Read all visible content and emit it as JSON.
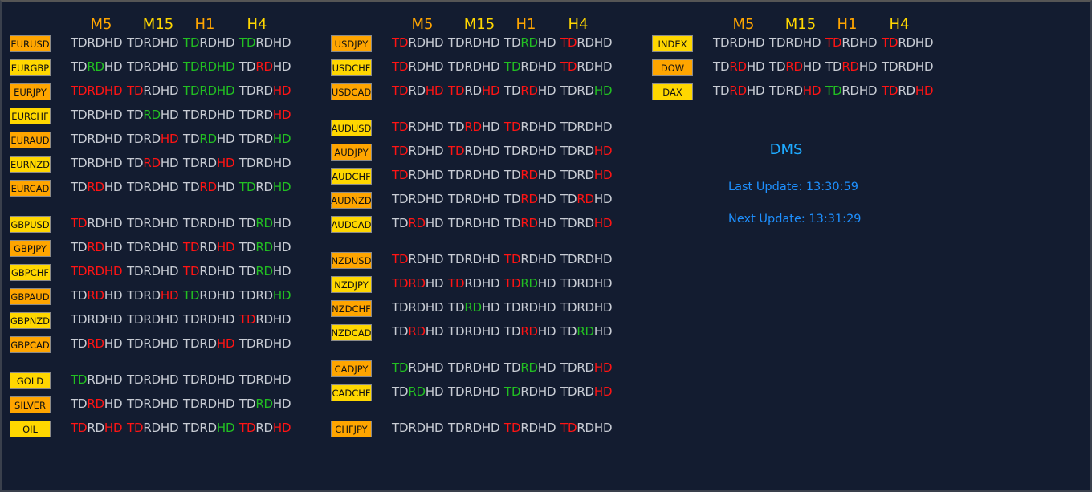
{
  "timeframes": [
    "M5",
    "M15",
    "H1",
    "H4"
  ],
  "segments": [
    "TD",
    "RD",
    "HD"
  ],
  "colors": {
    "background": "#131c30",
    "neutral": "#c8ccd4",
    "bearish": "#ff1414",
    "bullish": "#22c022",
    "header_orange": "#ffa500",
    "header_yellow": "#ffd700",
    "button_orange": "#ffa500",
    "button_gold": "#ffd700",
    "info_blue": "#1e90ff"
  },
  "legend_codes": {
    "w": "neutral",
    "r": "bearish",
    "g": "bullish"
  },
  "panels": [
    {
      "groups": [
        [
          {
            "symbol": "EURUSD",
            "button": "orange",
            "cells": [
              "www",
              "www",
              "gww",
              "gww"
            ]
          },
          {
            "symbol": "EURGBP",
            "button": "gold",
            "cells": [
              "wgw",
              "www",
              "ggg",
              "wrw"
            ]
          },
          {
            "symbol": "EURJPY",
            "button": "orange",
            "cells": [
              "rrr",
              "rww",
              "ggg",
              "wwr"
            ]
          },
          {
            "symbol": "EURCHF",
            "button": "gold",
            "cells": [
              "www",
              "wgw",
              "www",
              "wwr"
            ]
          },
          {
            "symbol": "EURAUD",
            "button": "orange",
            "cells": [
              "www",
              "wwr",
              "wgw",
              "wwg"
            ]
          },
          {
            "symbol": "EURNZD",
            "button": "gold",
            "cells": [
              "www",
              "wrw",
              "wwr",
              "www"
            ]
          },
          {
            "symbol": "EURCAD",
            "button": "orange",
            "cells": [
              "wrw",
              "www",
              "wrw",
              "gwg"
            ]
          }
        ],
        [
          {
            "symbol": "GBPUSD",
            "button": "gold",
            "cells": [
              "rww",
              "www",
              "www",
              "wgw"
            ]
          },
          {
            "symbol": "GBPJPY",
            "button": "orange",
            "cells": [
              "wrw",
              "www",
              "rwr",
              "wgw"
            ]
          },
          {
            "symbol": "GBPCHF",
            "button": "gold",
            "cells": [
              "rrr",
              "www",
              "rww",
              "wgw"
            ]
          },
          {
            "symbol": "GBPAUD",
            "button": "orange",
            "cells": [
              "wrw",
              "wwr",
              "gww",
              "wwg"
            ]
          },
          {
            "symbol": "GBPNZD",
            "button": "gold",
            "cells": [
              "www",
              "www",
              "www",
              "rww"
            ]
          },
          {
            "symbol": "GBPCAD",
            "button": "orange",
            "cells": [
              "wrw",
              "www",
              "wwr",
              "www"
            ]
          }
        ],
        [
          {
            "symbol": "GOLD",
            "button": "gold",
            "cells": [
              "gww",
              "www",
              "www",
              "www"
            ]
          },
          {
            "symbol": "SILVER",
            "button": "orange",
            "cells": [
              "wrw",
              "www",
              "www",
              "wgw"
            ]
          },
          {
            "symbol": "OIL",
            "button": "gold",
            "cells": [
              "rwr",
              "rww",
              "wwg",
              "rwr"
            ]
          }
        ]
      ]
    },
    {
      "groups": [
        [
          {
            "symbol": "USDJPY",
            "button": "orange",
            "cells": [
              "rww",
              "www",
              "wgw",
              "rww"
            ]
          },
          {
            "symbol": "USDCHF",
            "button": "gold",
            "cells": [
              "rww",
              "www",
              "gww",
              "rww"
            ]
          },
          {
            "symbol": "USDCAD",
            "button": "orange",
            "cells": [
              "rwr",
              "rwr",
              "wrw",
              "wwg"
            ]
          }
        ],
        [
          {
            "symbol": "AUDUSD",
            "button": "gold",
            "cells": [
              "rww",
              "wrw",
              "rww",
              "www"
            ]
          },
          {
            "symbol": "AUDJPY",
            "button": "orange",
            "cells": [
              "rww",
              "rww",
              "www",
              "wwr"
            ]
          },
          {
            "symbol": "AUDCHF",
            "button": "gold",
            "cells": [
              "rww",
              "www",
              "wrw",
              "wwr"
            ]
          },
          {
            "symbol": "AUDNZD",
            "button": "orange",
            "cells": [
              "www",
              "www",
              "wrw",
              "wrw"
            ]
          },
          {
            "symbol": "AUDCAD",
            "button": "gold",
            "cells": [
              "wrw",
              "www",
              "wrw",
              "wwr"
            ]
          }
        ],
        [
          {
            "symbol": "NZDUSD",
            "button": "orange",
            "cells": [
              "rww",
              "www",
              "rww",
              "www"
            ]
          },
          {
            "symbol": "NZDJPY",
            "button": "gold",
            "cells": [
              "rrw",
              "rww",
              "rgw",
              "www"
            ]
          },
          {
            "symbol": "NZDCHF",
            "button": "orange",
            "cells": [
              "www",
              "wgw",
              "www",
              "www"
            ]
          },
          {
            "symbol": "NZDCAD",
            "button": "gold",
            "cells": [
              "wrw",
              "www",
              "wrw",
              "wgw"
            ]
          }
        ],
        [
          {
            "symbol": "CADJPY",
            "button": "orange",
            "cells": [
              "gww",
              "www",
              "wgw",
              "wwr"
            ]
          },
          {
            "symbol": "CADCHF",
            "button": "gold",
            "cells": [
              "wgw",
              "www",
              "gww",
              "wwr"
            ]
          }
        ],
        [
          {
            "symbol": "CHFJPY",
            "button": "orange",
            "cells": [
              "www",
              "www",
              "rww",
              "rww"
            ]
          }
        ]
      ]
    },
    {
      "groups": [
        [
          {
            "symbol": "INDEX",
            "button": "gold",
            "cells": [
              "www",
              "www",
              "rww",
              "rww"
            ]
          },
          {
            "symbol": "DOW",
            "button": "orange",
            "cells": [
              "wrw",
              "wrw",
              "wrw",
              "www"
            ]
          },
          {
            "symbol": "DAX",
            "button": "gold",
            "cells": [
              "wrw",
              "wwr",
              "gww",
              "rwr"
            ]
          }
        ]
      ]
    }
  ],
  "info": {
    "title": "DMS",
    "last_update": "Last Update: 13:30:59",
    "next_update": "Next Update: 13:31:29"
  }
}
